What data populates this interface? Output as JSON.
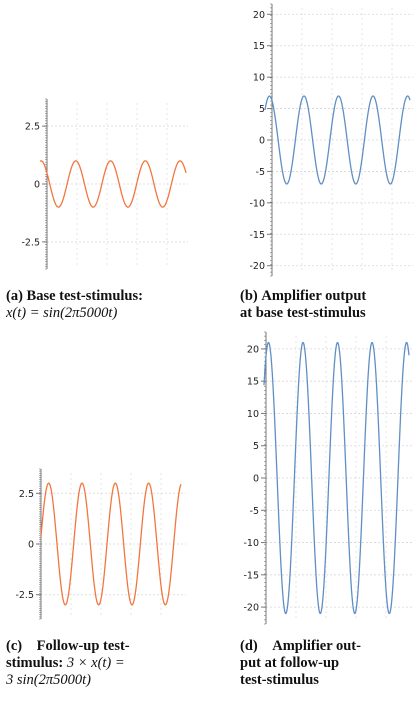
{
  "colors": {
    "orange": "#f2763f",
    "blue": "#5f8fc4",
    "axis": "#777777",
    "grid": "#d6d6d6"
  },
  "captions": {
    "a": {
      "label": "(a)",
      "lines": [
        "Base test-stimulus:"
      ],
      "math": "x(t) = sin(2π5000t)"
    },
    "b": {
      "label": "(b)",
      "lines": [
        "Amplifier output",
        "at base test-stimulus"
      ]
    },
    "c": {
      "label": "(c)",
      "lines": [
        "Follow-up test-",
        "stimulus:"
      ],
      "math_inline": "3 × x(t) =",
      "math": "3 sin(2π5000t)"
    },
    "d": {
      "label": "(d)",
      "lines": [
        "Amplifier out-",
        "put at follow-up",
        "test-stimulus"
      ]
    }
  },
  "chart_data": [
    {
      "id": "a",
      "type": "line",
      "title": "",
      "xlabel": "",
      "ylabel": "",
      "ylim": [
        -3.5,
        3.5
      ],
      "grid": true,
      "x_axis_labels": false,
      "yticks": [
        2.5,
        0,
        -2.5
      ],
      "ytick_labels": [
        "2.5",
        "0",
        "-2.5"
      ],
      "series": [
        {
          "color": "orange",
          "amplitude": 1,
          "cycles": 4.2,
          "phase": 0.22
        }
      ]
    },
    {
      "id": "b",
      "type": "line",
      "title": "",
      "xlabel": "",
      "ylabel": "",
      "ylim": [
        -21,
        21
      ],
      "grid": true,
      "x_axis_labels": false,
      "yticks": [
        20,
        15,
        10,
        5,
        0,
        -5,
        -10,
        -15,
        -20
      ],
      "ytick_labels": [
        "20",
        "15",
        "10",
        "5",
        "0",
        "-5",
        "-10",
        "-15",
        "-20"
      ],
      "series": [
        {
          "color": "blue",
          "amplitude": 7,
          "offset": 0,
          "cycles": 4.2,
          "phase": 0.12
        }
      ]
    },
    {
      "id": "c",
      "type": "line",
      "title": "",
      "xlabel": "",
      "ylabel": "",
      "ylim": [
        -3.5,
        3.5
      ],
      "grid": true,
      "x_axis_labels": false,
      "yticks": [
        2.5,
        0,
        -2.5
      ],
      "ytick_labels": [
        "2.5",
        "0",
        "-2.5"
      ],
      "series": [
        {
          "color": "orange",
          "amplitude": 3,
          "cycles": 4.2,
          "phase": 0.02
        }
      ]
    },
    {
      "id": "d",
      "type": "line",
      "title": "",
      "xlabel": "",
      "ylabel": "",
      "ylim": [
        -22,
        22
      ],
      "grid": true,
      "x_axis_labels": false,
      "yticks": [
        20,
        15,
        10,
        5,
        0,
        -5,
        -10,
        -15,
        -20
      ],
      "ytick_labels": [
        "20",
        "15",
        "10",
        "5",
        "0",
        "-5",
        "-10",
        "-15",
        "-20"
      ],
      "series": [
        {
          "color": "blue",
          "amplitude": 21,
          "cycles": 4.2,
          "phase": 0.12
        }
      ]
    }
  ]
}
